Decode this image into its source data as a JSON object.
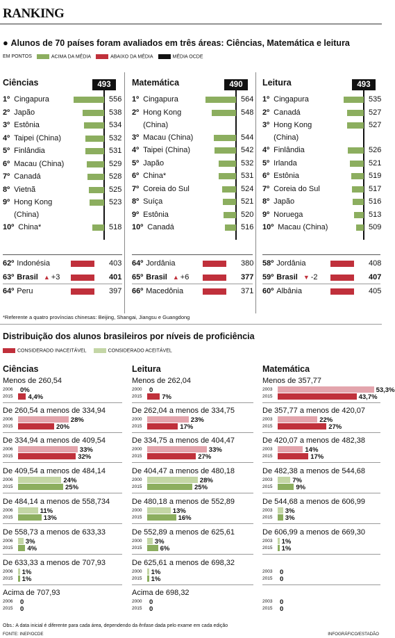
{
  "title": "RANKING",
  "headline": "Alunos de 70 países foram avaliados em três áreas: Ciências, Matemática e leitura",
  "legend": {
    "unit": "EM PONTOS",
    "above": "ACIMA DA MÉDIA",
    "below": "ABAIXO DA MÉDIA",
    "avg": "MÉDIA OCDE"
  },
  "chart_data": [
    {
      "type": "bar",
      "title": "Ciências",
      "reference": 493,
      "top": [
        {
          "rank": "1º",
          "name": "Cingapura",
          "value": 556
        },
        {
          "rank": "2º",
          "name": "Japão",
          "value": 538
        },
        {
          "rank": "3º",
          "name": "Estônia",
          "value": 534
        },
        {
          "rank": "4º",
          "name": "Taipei (China)",
          "value": 532
        },
        {
          "rank": "5º",
          "name": "Finlândia",
          "value": 531
        },
        {
          "rank": "6º",
          "name": "Macau (China)",
          "value": 529
        },
        {
          "rank": "7º",
          "name": "Canadá",
          "value": 528
        },
        {
          "rank": "8º",
          "name": "Vietnã",
          "value": 525
        },
        {
          "rank": "9º",
          "name": "Hong Kong (China)",
          "value": 523
        },
        {
          "rank": "10º",
          "name": "China*",
          "value": 518
        }
      ],
      "bottom": [
        {
          "rank": "62º",
          "name": "Indonésia",
          "value": 403
        },
        {
          "rank": "63º",
          "name": "Brasil",
          "value": 401,
          "change": "+3",
          "dir": "up"
        },
        {
          "rank": "64º",
          "name": "Peru",
          "value": 397
        }
      ]
    },
    {
      "type": "bar",
      "title": "Matemática",
      "reference": 490,
      "top": [
        {
          "rank": "1º",
          "name": "Cingapura",
          "value": 564
        },
        {
          "rank": "2º",
          "name": "Hong Kong (China)",
          "value": 548
        },
        {
          "rank": "3º",
          "name": "Macau (China)",
          "value": 544
        },
        {
          "rank": "4º",
          "name": "Taipei (China)",
          "value": 542
        },
        {
          "rank": "5º",
          "name": "Japão",
          "value": 532
        },
        {
          "rank": "6º",
          "name": "China*",
          "value": 531
        },
        {
          "rank": "7º",
          "name": "Coreia do Sul",
          "value": 524
        },
        {
          "rank": "8º",
          "name": "Suíça",
          "value": 521
        },
        {
          "rank": "9º",
          "name": "Estônia",
          "value": 520
        },
        {
          "rank": "10º",
          "name": "Canadá",
          "value": 516
        }
      ],
      "bottom": [
        {
          "rank": "64º",
          "name": "Jordânia",
          "value": 380
        },
        {
          "rank": "65º",
          "name": "Brasil",
          "value": 377,
          "change": "+6",
          "dir": "up"
        },
        {
          "rank": "66º",
          "name": "Macedônia",
          "value": 371
        }
      ]
    },
    {
      "type": "bar",
      "title": "Leitura",
      "reference": 493,
      "top": [
        {
          "rank": "1º",
          "name": "Cingapura",
          "value": 535
        },
        {
          "rank": "2º",
          "name": "Canadá",
          "value": 527
        },
        {
          "rank": "3º",
          "name": "Hong Kong (China)",
          "value": 527
        },
        {
          "rank": "4º",
          "name": "Finlândia",
          "value": 526
        },
        {
          "rank": "5º",
          "name": "Irlanda",
          "value": 521
        },
        {
          "rank": "6º",
          "name": "Estônia",
          "value": 519
        },
        {
          "rank": "7º",
          "name": "Coreia do Sul",
          "value": 517
        },
        {
          "rank": "8º",
          "name": "Japão",
          "value": 516
        },
        {
          "rank": "9º",
          "name": "Noruega",
          "value": 513
        },
        {
          "rank": "10º",
          "name": "Macau (China)",
          "value": 509
        }
      ],
      "bottom": [
        {
          "rank": "58º",
          "name": "Jordânia",
          "value": 408
        },
        {
          "rank": "59º",
          "name": "Brasil",
          "value": 407,
          "change": "-2",
          "dir": "down"
        },
        {
          "rank": "60º",
          "name": "Albânia",
          "value": 405
        }
      ]
    },
    {
      "type": "bar",
      "title": "Ciências",
      "levels": [
        {
          "label": "Menos de 260,54",
          "years": [
            "2006",
            "2015"
          ],
          "values": [
            0,
            4.4
          ],
          "texts": [
            "0%",
            "4,4%"
          ],
          "kind": "red"
        },
        {
          "label": "De 260,54 a menos de 334,94",
          "years": [
            "2006",
            "2015"
          ],
          "values": [
            28,
            20
          ],
          "texts": [
            "28%",
            "20%"
          ],
          "kind": "red"
        },
        {
          "label": "De 334,94 a menos de 409,54",
          "years": [
            "2006",
            "2015"
          ],
          "values": [
            33,
            32
          ],
          "texts": [
            "33%",
            "32%"
          ],
          "kind": "red"
        },
        {
          "label": "De 409,54 a menos de 484,14",
          "years": [
            "2006",
            "2015"
          ],
          "values": [
            24,
            25
          ],
          "texts": [
            "24%",
            "25%"
          ],
          "kind": "green"
        },
        {
          "label": "De 484,14 a menos de 558,734",
          "years": [
            "2006",
            "2015"
          ],
          "values": [
            11,
            13
          ],
          "texts": [
            "11%",
            "13%"
          ],
          "kind": "green"
        },
        {
          "label": "De 558,73 a menos de 633,33",
          "years": [
            "2006",
            "2015"
          ],
          "values": [
            3,
            4
          ],
          "texts": [
            "3%",
            "4%"
          ],
          "kind": "green"
        },
        {
          "label": "De 633,33 a menos de 707,93",
          "years": [
            "2006",
            "2015"
          ],
          "values": [
            1,
            1
          ],
          "texts": [
            "1%",
            "1%"
          ],
          "kind": "green"
        },
        {
          "label": "Acima de 707,93",
          "years": [
            "2006",
            "2015"
          ],
          "values": [
            0,
            0
          ],
          "texts": [
            "0",
            "0"
          ],
          "kind": "green"
        }
      ]
    },
    {
      "type": "bar",
      "title": "Leitura",
      "levels": [
        {
          "label": "Menos de 262,04",
          "years": [
            "2000",
            "2015"
          ],
          "values": [
            0,
            7
          ],
          "texts": [
            "0",
            "7%"
          ],
          "kind": "red"
        },
        {
          "label": "De 262,04 a menos de 334,75",
          "years": [
            "2000",
            "2015"
          ],
          "values": [
            23,
            17
          ],
          "texts": [
            "23%",
            "17%"
          ],
          "kind": "red"
        },
        {
          "label": "De 334,75 a menos de 404,47",
          "years": [
            "2000",
            "2015"
          ],
          "values": [
            33,
            27
          ],
          "texts": [
            "33%",
            "27%"
          ],
          "kind": "red"
        },
        {
          "label": "De 404,47 a menos de 480,18",
          "years": [
            "2000",
            "2015"
          ],
          "values": [
            28,
            25
          ],
          "texts": [
            "28%",
            "25%"
          ],
          "kind": "green"
        },
        {
          "label": "De 480,18 a menos de 552,89",
          "years": [
            "2000",
            "2015"
          ],
          "values": [
            13,
            16
          ],
          "texts": [
            "13%",
            "16%"
          ],
          "kind": "green"
        },
        {
          "label": "De 552,89 a menos de 625,61",
          "years": [
            "2000",
            "2015"
          ],
          "values": [
            3,
            6
          ],
          "texts": [
            "3%",
            "6%"
          ],
          "kind": "green"
        },
        {
          "label": "De 625,61 a menos de 698,32",
          "years": [
            "2000",
            "2015"
          ],
          "values": [
            1,
            1
          ],
          "texts": [
            "1%",
            "1%"
          ],
          "kind": "green"
        },
        {
          "label": "Acima de 698,32",
          "years": [
            "2000",
            "2015"
          ],
          "values": [
            0,
            0
          ],
          "texts": [
            "0",
            "0"
          ],
          "kind": "green"
        }
      ]
    },
    {
      "type": "bar",
      "title": "Matemática",
      "levels": [
        {
          "label": "Menos de 357,77",
          "years": [
            "2003",
            "2015"
          ],
          "values": [
            53.3,
            43.7
          ],
          "texts": [
            "53,3%",
            "43,7%"
          ],
          "kind": "red"
        },
        {
          "label": "De 357,77 a menos de 420,07",
          "years": [
            "2003",
            "2015"
          ],
          "values": [
            22,
            27
          ],
          "texts": [
            "22%",
            "27%"
          ],
          "kind": "red"
        },
        {
          "label": "De 420,07 a menos de 482,38",
          "years": [
            "2003",
            "2015"
          ],
          "values": [
            14,
            17
          ],
          "texts": [
            "14%",
            "17%"
          ],
          "kind": "red"
        },
        {
          "label": "De 482,38 a menos de 544,68",
          "years": [
            "2003",
            "2015"
          ],
          "values": [
            7,
            9
          ],
          "texts": [
            "7%",
            "9%"
          ],
          "kind": "green"
        },
        {
          "label": "De 544,68 a menos de 606,99",
          "years": [
            "2003",
            "2015"
          ],
          "values": [
            3,
            3
          ],
          "texts": [
            "3%",
            "3%"
          ],
          "kind": "green"
        },
        {
          "label": "De 606,99 a menos de 669,30",
          "years": [
            "2003",
            "2015"
          ],
          "values": [
            1,
            1
          ],
          "texts": [
            "1%",
            "1%"
          ],
          "kind": "green"
        },
        {
          "label": "",
          "years": [
            "2003",
            "2015"
          ],
          "values": [
            0,
            0
          ],
          "texts": [
            "0",
            "0"
          ],
          "kind": "green"
        },
        {
          "label": "",
          "years": [
            "2003",
            "2015"
          ],
          "values": [
            0,
            0
          ],
          "texts": [
            "0",
            "0"
          ],
          "kind": "green"
        }
      ]
    }
  ],
  "footnote": "*Referente a quatro províncias chinesas: Beijing, Shangai, Jiangsu e Guangdong",
  "subtitle": "Distribuição dos alunos brasileiros por níveis de proficiência",
  "legend2": {
    "unacceptable": "CONSIDERADO INACEITÁVEL",
    "acceptable": "CONSIDERADO ACEITÁVEL"
  },
  "obs": "Obs.: A data inicial é diferente para cada área, dependendo da ênfase dada pelo exame em cada edição",
  "source": "FONTE: INEP/OCDE",
  "credit": "INFOGRÁFICO/ESTADÃO",
  "colors": {
    "green": "#8cae5f",
    "red": "#c0303b",
    "pink": "#e3a5ad",
    "red_dark": "#c0303b",
    "light_green": "#c4d6a6",
    "dark_green": "#8cae5f"
  }
}
